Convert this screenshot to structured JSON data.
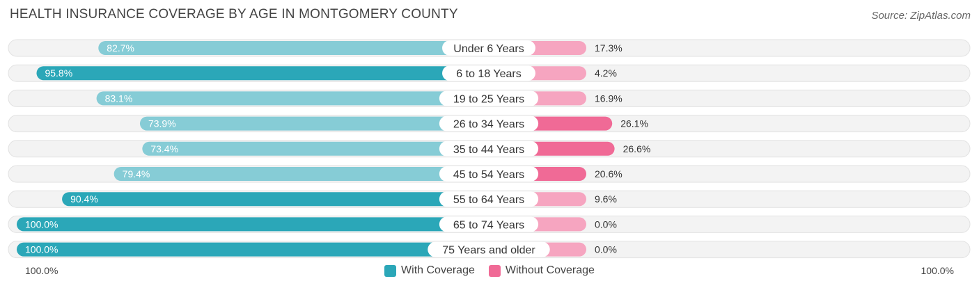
{
  "header": {
    "title": "HEALTH INSURANCE COVERAGE BY AGE IN MONTGOMERY COUNTY",
    "source": "Source: ZipAtlas.com"
  },
  "colors": {
    "with_strong": "#2ba7b8",
    "with_light": "#86ccd6",
    "without_strong": "#f06a96",
    "without_light": "#f6a5c0",
    "track": "#efefef"
  },
  "chart_data": {
    "type": "bar",
    "orientation": "horizontal-diverging",
    "title": "HEALTH INSURANCE COVERAGE BY AGE IN MONTGOMERY COUNTY",
    "categories": [
      "Under 6 Years",
      "6 to 18 Years",
      "19 to 25 Years",
      "26 to 34 Years",
      "35 to 44 Years",
      "45 to 54 Years",
      "55 to 64 Years",
      "65 to 74 Years",
      "75 Years and older"
    ],
    "series": [
      {
        "name": "With Coverage",
        "values": [
          82.7,
          95.8,
          83.1,
          73.9,
          73.4,
          79.4,
          90.4,
          100.0,
          100.0
        ],
        "labels": [
          "82.7%",
          "95.8%",
          "83.1%",
          "73.9%",
          "73.4%",
          "79.4%",
          "90.4%",
          "100.0%",
          "100.0%"
        ]
      },
      {
        "name": "Without Coverage",
        "values": [
          17.3,
          4.2,
          16.9,
          26.1,
          26.6,
          20.6,
          9.6,
          0.0,
          0.0
        ],
        "labels": [
          "17.3%",
          "4.2%",
          "16.9%",
          "26.1%",
          "26.6%",
          "20.6%",
          "9.6%",
          "0.0%",
          "0.0%"
        ]
      }
    ],
    "xlim": [
      -100,
      100
    ],
    "axis_labels": {
      "left": "100.0%",
      "right": "100.0%"
    },
    "legend": [
      {
        "name": "With Coverage",
        "color": "#2ba7b8"
      },
      {
        "name": "Without Coverage",
        "color": "#f06a96"
      }
    ],
    "legend_position": "bottom-center"
  }
}
